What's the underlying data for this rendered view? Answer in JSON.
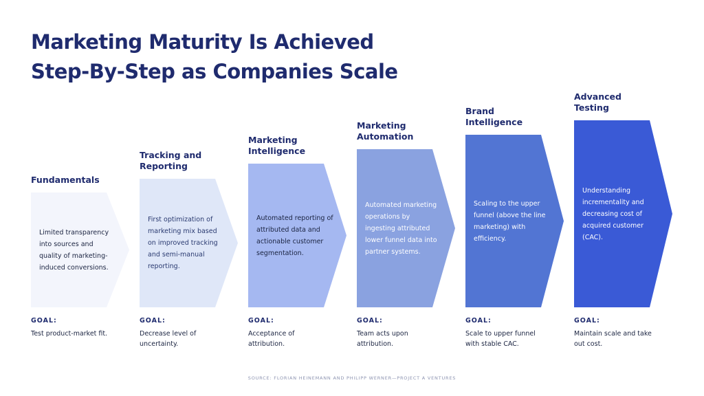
{
  "header": {
    "title_lines": [
      "Marketing Maturity Is Achieved",
      "Step-By-Step as Companies Scale"
    ]
  },
  "steps": [
    {
      "label": "Fundamentals",
      "description": "Limited transparency into sources and quality of marketing-induced conversions.",
      "goal_label": "GOAL:",
      "goal": "Test product-market fit."
    },
    {
      "label": "Tracking and Reporting",
      "description": "First optimization of marketing mix based on improved tracking and semi-manual reporting.",
      "goal_label": "GOAL:",
      "goal": "Decrease level of uncertainty."
    },
    {
      "label": "Marketing Intelligence",
      "description": "Automated reporting of attributed data and actionable customer segmentation.",
      "goal_label": "GOAL:",
      "goal": "Acceptance of attribution."
    },
    {
      "label": "Marketing Automation",
      "description": "Automated marketing operations by ingesting attributed lower funnel data into partner systems.",
      "goal_label": "GOAL:",
      "goal": "Team acts upon attribution."
    },
    {
      "label": "Brand Intelligence",
      "description": "Scaling to the upper funnel (above the line marketing) with efficiency.",
      "goal_label": "GOAL:",
      "goal": "Scale to upper funnel with stable CAC."
    },
    {
      "label": "Advanced Testing",
      "description": "Understanding incrementality and decreasing cost of acquired customer (CAC).",
      "goal_label": "GOAL:",
      "goal": "Maintain scale and take out cost."
    }
  ],
  "footer": {
    "source": "SOURCE: FLORIAN HEINEMANN AND PHILIPP WERNER—PROJECT A VENTURES"
  }
}
